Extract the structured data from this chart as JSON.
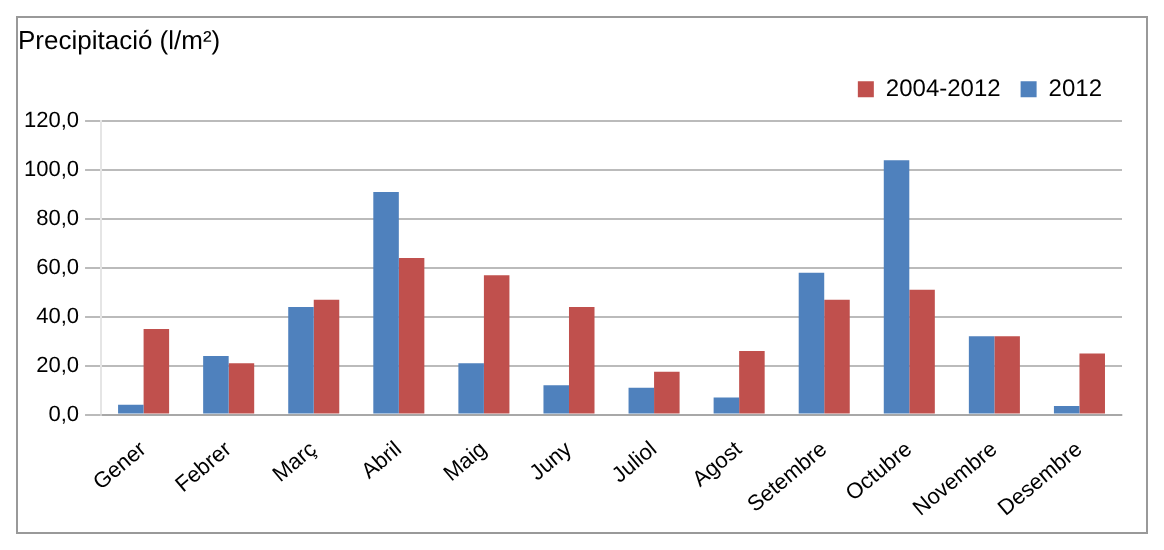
{
  "chart_data": {
    "type": "bar",
    "title": "Precipitació (l/m²)",
    "categories": [
      "Gener",
      "Febrer",
      "Març",
      "Abril",
      "Maig",
      "Juny",
      "Juliol",
      "Agost",
      "Setembre",
      "Octubre",
      "Novembre",
      "Desembre"
    ],
    "series": [
      {
        "name": "2012",
        "color": "#4f81bd",
        "values": [
          4,
          24,
          44,
          91,
          21,
          12,
          11,
          7,
          58,
          104,
          32,
          3.5
        ]
      },
      {
        "name": "2004-2012",
        "color": "#c0504d",
        "values": [
          35,
          21,
          47,
          64,
          57,
          44,
          17.5,
          26,
          47,
          51,
          32,
          25
        ]
      }
    ],
    "ylim": [
      0,
      120
    ],
    "yticks": [
      {
        "value": 0,
        "label": "0,0"
      },
      {
        "value": 20,
        "label": "20,0"
      },
      {
        "value": 40,
        "label": "40,0"
      },
      {
        "value": 60,
        "label": "60,0"
      },
      {
        "value": 80,
        "label": "80,0"
      },
      {
        "value": 100,
        "label": "100,0"
      },
      {
        "value": 120,
        "label": "120,0"
      }
    ],
    "grid": "y",
    "legend": "top"
  }
}
